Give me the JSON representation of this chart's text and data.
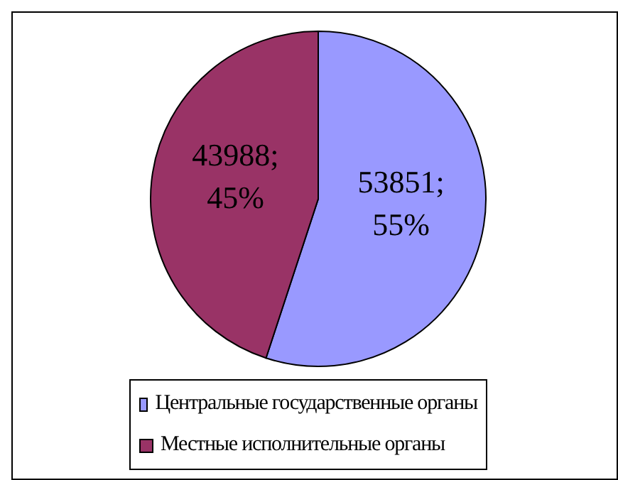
{
  "chart_data": {
    "type": "pie",
    "categories": [
      "Центральные государственные органы",
      "Местные исполнительные органы"
    ],
    "values": [
      53851,
      43988
    ],
    "colors": [
      "#9999ff",
      "#993366"
    ],
    "value_labels": [
      "53851; 55%",
      "43988; 45%"
    ],
    "legend": "bottom"
  }
}
